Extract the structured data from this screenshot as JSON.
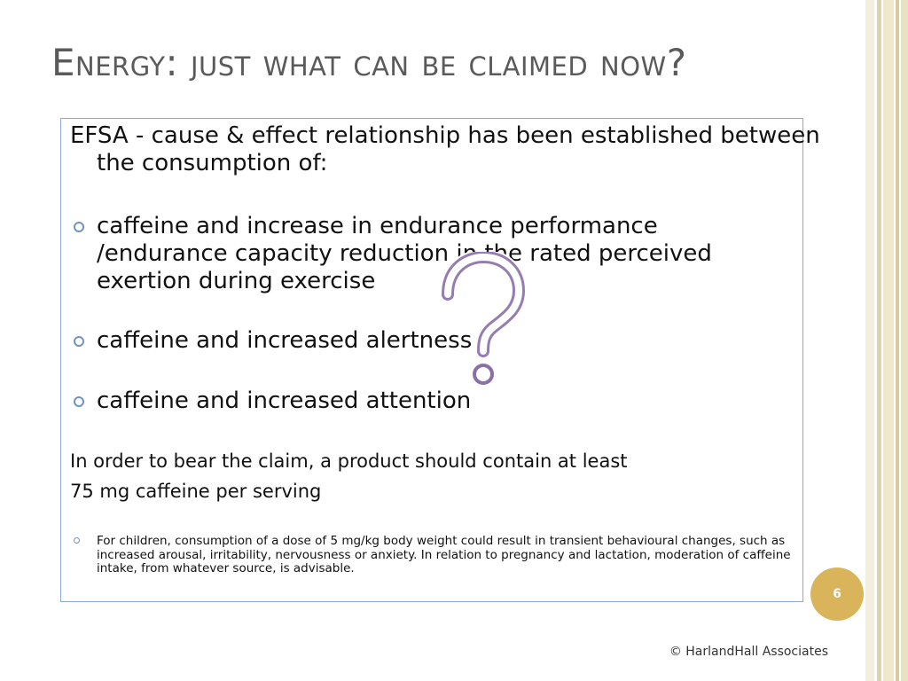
{
  "slide": {
    "title": "Energy: just what can be claimed now?",
    "intro": "EFSA - cause & effect relationship has been established between the consumption of:",
    "bullets": [
      "caffeine and increase in endurance performance /endurance capacity reduction in the rated perceived exertion during exercise",
      "caffeine and increased alertness",
      "caffeine and increased attention"
    ],
    "claim_line_1": "In order to bear the claim, a product should contain at least",
    "claim_line_2": "75 mg caffeine per serving",
    "note": "For children, consumption of a dose of 5 mg/kg body weight could result in transient behavioural changes, such as increased arousal, irritability, nervousness or anxiety. In relation to pregnancy and lactation, moderation of caffeine intake, from whatever source, is advisable.",
    "page_number": "6",
    "copyright": "© HarlandHall Associates"
  },
  "colors": {
    "title": "#5a5a5a",
    "box_border": "#8eaad8",
    "bullet": "#6f93c4",
    "badge": "#d9b45a",
    "question_mark": "#8a6fa8",
    "stripe_light": "#f1ecd8",
    "stripe_dark": "#dcd3ad"
  },
  "icons": {
    "decoration": "question-mark-icon"
  }
}
